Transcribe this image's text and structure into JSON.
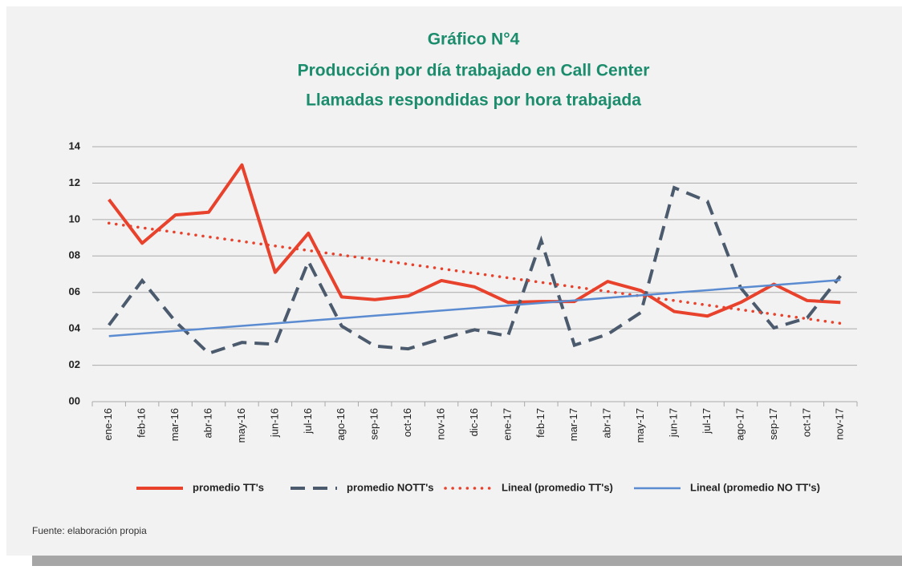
{
  "chart_data": {
    "type": "line",
    "title": "Gráfico N°4",
    "subtitle": [
      "Producción por día trabajado en Call Center",
      "Llamadas respondidas por hora trabajada"
    ],
    "categories": [
      "ene-16",
      "feb-16",
      "mar-16",
      "abr-16",
      "may-16",
      "jun-16",
      "jul-16",
      "ago-16",
      "sep-16",
      "oct-16",
      "nov-16",
      "dic-16",
      "ene-17",
      "feb-17",
      "mar-17",
      "abr-17",
      "may-17",
      "jun-17",
      "jul-17",
      "ago-17",
      "sep-17",
      "oct-17",
      "nov-17"
    ],
    "series": [
      {
        "name": "promedio TT's",
        "color": "#e8412c",
        "style": "solid",
        "values": [
          11.1,
          8.7,
          10.25,
          10.4,
          13.0,
          7.1,
          9.25,
          5.75,
          5.6,
          5.8,
          6.65,
          6.3,
          5.45,
          5.5,
          5.5,
          6.6,
          6.1,
          4.95,
          4.7,
          5.45,
          6.45,
          5.55,
          5.45
        ]
      },
      {
        "name": "promedio NOTT's",
        "color": "#4b5a6d",
        "style": "dashed",
        "values": [
          4.2,
          6.65,
          4.4,
          2.65,
          3.25,
          3.15,
          7.7,
          4.15,
          3.05,
          2.9,
          3.45,
          3.95,
          3.6,
          8.85,
          3.1,
          3.7,
          4.9,
          11.75,
          11.0,
          6.25,
          4.05,
          4.6,
          6.9
        ]
      },
      {
        "name": "Lineal (promedio TT's)",
        "color": "#e8412c",
        "style": "dotted",
        "values": [
          9.8,
          9.55,
          9.3,
          9.05,
          8.8,
          8.55,
          8.3,
          8.05,
          7.8,
          7.55,
          7.3,
          7.05,
          6.8,
          6.55,
          6.3,
          6.05,
          5.8,
          5.55,
          5.3,
          5.05,
          4.8,
          4.55,
          4.3
        ]
      },
      {
        "name": "Lineal (promedio NO TT's)",
        "color": "#5b8bd0",
        "style": "thin",
        "values": [
          3.6,
          3.74,
          3.88,
          4.02,
          4.16,
          4.3,
          4.44,
          4.58,
          4.72,
          4.86,
          5.0,
          5.14,
          5.28,
          5.42,
          5.56,
          5.7,
          5.84,
          5.98,
          6.12,
          6.26,
          6.4,
          6.54,
          6.68
        ]
      }
    ],
    "ylim": [
      0,
      14
    ],
    "yticks": [
      {
        "value": 0,
        "label": "00"
      },
      {
        "value": 2,
        "label": "02"
      },
      {
        "value": 4,
        "label": "04"
      },
      {
        "value": 6,
        "label": "06"
      },
      {
        "value": 8,
        "label": "08"
      },
      {
        "value": 10,
        "label": "10"
      },
      {
        "value": 12,
        "label": "12"
      },
      {
        "value": 14,
        "label": "14"
      }
    ],
    "grid": true,
    "legend": "bottom",
    "source": "Fuente: elaboración propia"
  }
}
